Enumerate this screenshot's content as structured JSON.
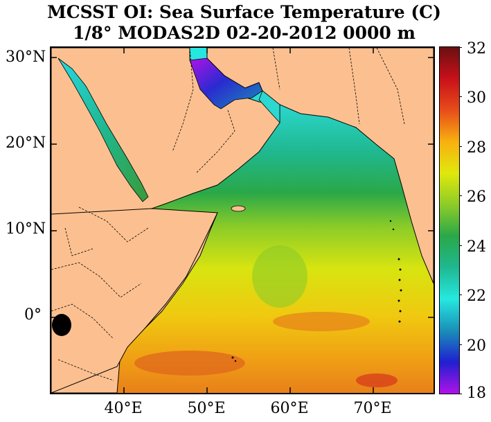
{
  "title": {
    "line1": "MCSST OI:  Sea Surface Temperature (C)",
    "line2": "1/8° MODAS2D 02-20-2012 0000 m"
  },
  "map": {
    "lat_labels": [
      "30°N",
      "20°N",
      "10°N",
      "0°"
    ],
    "lon_labels": [
      "40°E",
      "50°E",
      "60°E",
      "70°E"
    ],
    "lat_range": [
      -9,
      31
    ],
    "lon_range": [
      31,
      77
    ],
    "land_color": "#fcc090"
  },
  "colorbar": {
    "min": 18,
    "max": 32,
    "labels": [
      "32",
      "30",
      "28",
      "26",
      "24",
      "22",
      "20",
      "18"
    ],
    "colors": [
      "#b012e8",
      "#2020d0",
      "#1a8fb8",
      "#26e8e0",
      "#1fb890",
      "#2aa848",
      "#8ccc28",
      "#e0e80c",
      "#f8b010",
      "#e84c1a",
      "#c8101a",
      "#6a1010"
    ]
  }
}
